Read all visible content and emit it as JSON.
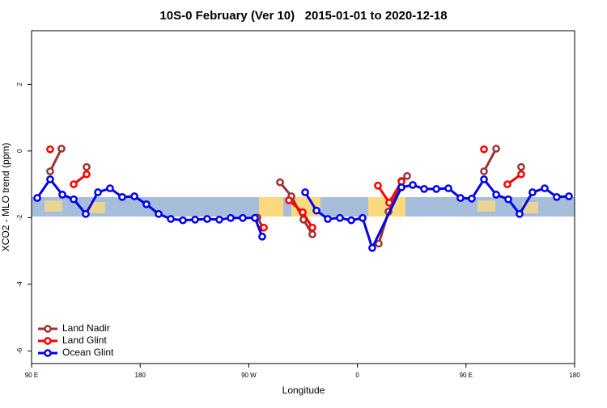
{
  "chart_data": {
    "type": "line",
    "title": "10S-0 February (Ver 10)   2015-01-01 to 2020-12-18",
    "x_label": "Longitude",
    "y_label": "XCO2 - MLO trend (ppm)",
    "xlim": [
      90,
      540
    ],
    "ylim": [
      -6.38,
      3.61
    ],
    "xticks": [
      {
        "value": 90,
        "label": "90 E"
      },
      180,
      {
        "value": 270,
        "label": "90 W"
      },
      {
        "value": 360,
        "label": "0"
      },
      {
        "value": 450,
        "label": "90 E"
      },
      {
        "value": 540,
        "label": "180"
      }
    ],
    "yticks": [
      -6,
      -4,
      -2,
      0,
      2
    ],
    "legend": "bottom-left",
    "series": [
      {
        "name": "Land Nadir",
        "color": "#9b3333",
        "x": [
          105.4,
          114.8,
          null,
          135.6,
          null,
          277.1,
          281.8,
          null,
          295.9,
          305.3,
          315.3,
          322.7,
          null,
          377.7,
          385.8,
          396.5,
          401.2,
          null,
          464.9,
          475,
          null,
          495.7
        ],
        "values": [
          -0.61,
          0.07,
          null,
          -0.48,
          null,
          -2.0,
          -2.3,
          null,
          -0.94,
          -1.36,
          -2.06,
          -2.5,
          null,
          -2.78,
          -1.82,
          -0.9,
          -0.75,
          null,
          -0.61,
          0.07,
          null,
          -0.48
        ]
      },
      {
        "name": "Land Glint",
        "color": "#ff0000",
        "x": [
          105.4,
          null,
          124.9,
          135.6,
          null,
          282.5,
          null,
          303.3,
          314.7,
          322.7,
          null,
          377,
          386.4,
          396.5,
          null,
          464.9,
          null,
          484.3,
          495.7
        ],
        "values": [
          0.05,
          null,
          -1.0,
          -0.7,
          null,
          -2.3,
          null,
          -1.48,
          -1.84,
          -2.3,
          null,
          -1.04,
          -1.55,
          -0.92,
          null,
          0.05,
          null,
          -1.0,
          -0.7
        ]
      },
      {
        "name": "Ocean Glint",
        "color": "#0000ee",
        "x": [
          94.7,
          105.4,
          115.5,
          124.9,
          134.9,
          145,
          155,
          165.1,
          175.2,
          185.2,
          195.3,
          205.4,
          215.4,
          225.5,
          235.5,
          245.6,
          255,
          265,
          275.1,
          281.1,
          null,
          316.7,
          326.1,
          335.5,
          345.5,
          354.9,
          364.3,
          372.3,
          396.5,
          405.9,
          415.3,
          425.4,
          435.4,
          445.4,
          454.8,
          464.9,
          475,
          485,
          494.4,
          505.1,
          515.2,
          525.2,
          535.3
        ],
        "values": [
          -1.41,
          -0.85,
          -1.31,
          -1.45,
          -1.89,
          -1.24,
          -1.12,
          -1.38,
          -1.36,
          -1.6,
          -1.89,
          -2.04,
          -2.08,
          -2.06,
          -2.04,
          -2.06,
          -2.01,
          -2.01,
          -2.01,
          -2.57,
          null,
          -1.24,
          -1.79,
          -2.04,
          -2.01,
          -2.08,
          -2.01,
          -2.91,
          -1.09,
          -1.02,
          -1.14,
          -1.14,
          -1.12,
          -1.41,
          -1.43,
          -0.85,
          -1.31,
          -1.45,
          -1.89,
          -1.24,
          -1.12,
          -1.38,
          -1.36
        ]
      }
    ]
  }
}
